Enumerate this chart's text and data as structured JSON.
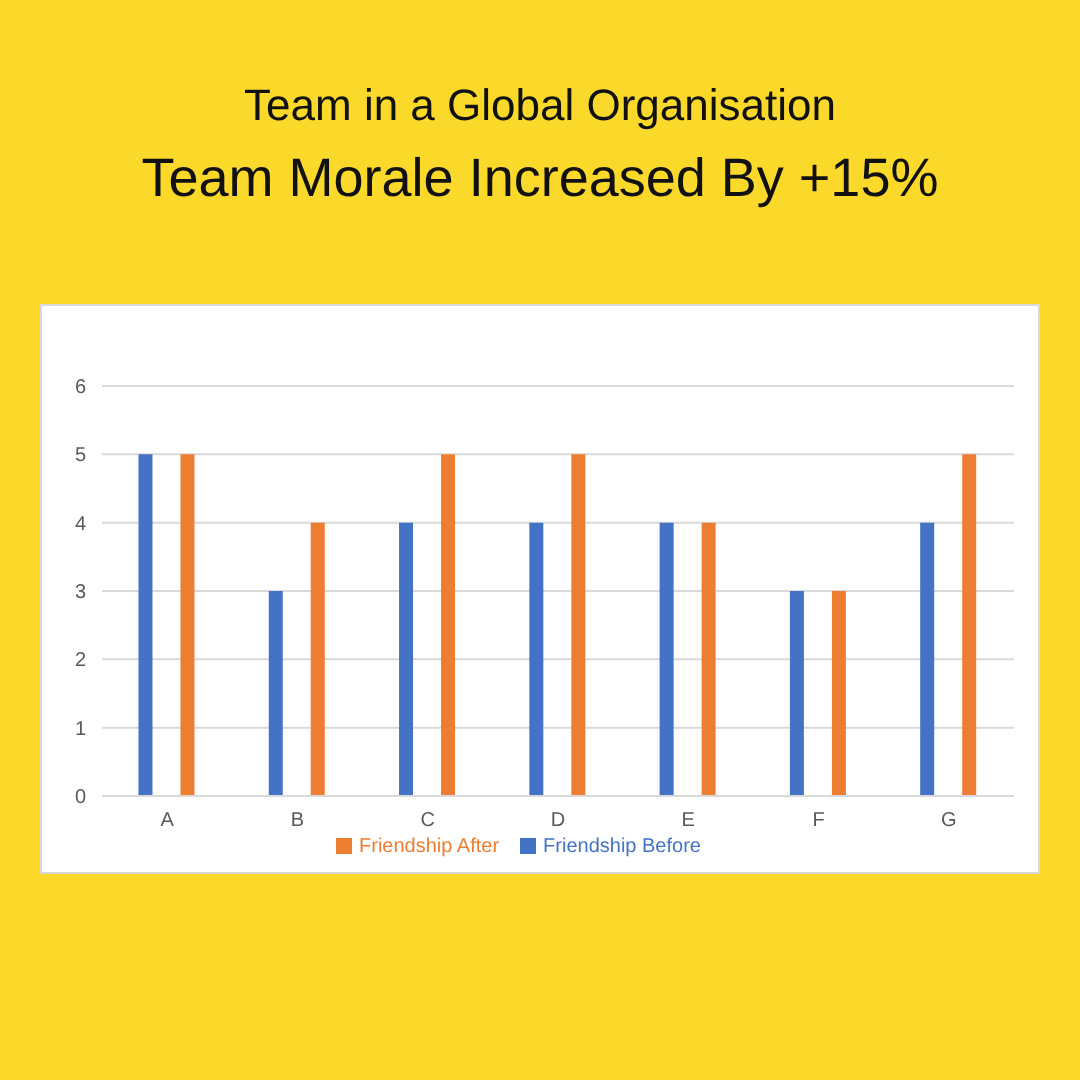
{
  "chart_data": {
    "type": "bar",
    "title": "Team in a Global Organisation",
    "subtitle": "Team Morale Increased By +15%",
    "categories": [
      "A",
      "B",
      "C",
      "D",
      "E",
      "F",
      "G"
    ],
    "series": [
      {
        "name": "Friendship Before",
        "color": "#4472c4",
        "values": [
          5,
          3,
          4,
          4,
          4,
          3,
          4
        ]
      },
      {
        "name": "Friendship After",
        "color": "#ed7d31",
        "values": [
          5,
          4,
          5,
          5,
          4,
          3,
          5
        ]
      }
    ],
    "ylim": [
      0,
      6
    ],
    "yticks": [
      0,
      1,
      2,
      3,
      4,
      5,
      6
    ],
    "grid": "y",
    "legend": "bottom"
  }
}
